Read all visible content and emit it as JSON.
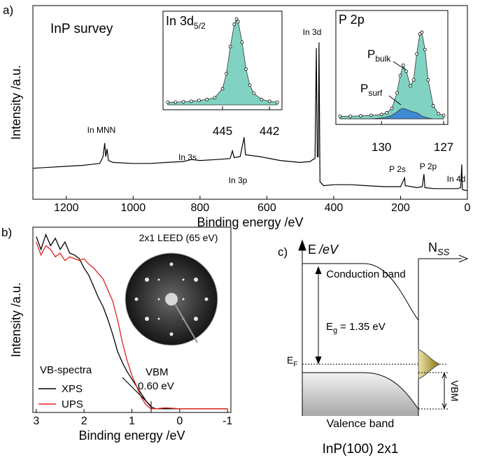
{
  "chart_data": [
    {
      "type": "line",
      "panel_label": "a)",
      "title": "InP survey",
      "x_label": "Binding energy /eV",
      "y_label": "Intensity /a.u.",
      "color": "#000000",
      "x": [
        1300,
        1250,
        1200,
        1150,
        1100,
        1090,
        1085,
        1082,
        1078,
        1074,
        1060,
        1000,
        950,
        900,
        850,
        825,
        800,
        750,
        710,
        703,
        698,
        680,
        668,
        664,
        620,
        560,
        500,
        470,
        462,
        456,
        452,
        449,
        446,
        444,
        441,
        430,
        400,
        350,
        300,
        250,
        200,
        188,
        186,
        150,
        135,
        130,
        127,
        100,
        60,
        30,
        20,
        17,
        15,
        5,
        0
      ],
      "values": [
        16,
        16.5,
        17,
        17.5,
        18.5,
        22,
        29,
        22,
        26,
        20,
        19,
        18.5,
        18.5,
        19,
        19.5,
        20.5,
        20,
        20.5,
        21,
        25,
        21.5,
        22,
        32,
        23,
        22,
        20,
        19,
        19.5,
        20.5,
        21,
        78,
        22,
        22,
        81,
        9,
        7,
        7.5,
        7.5,
        7,
        6.5,
        6.5,
        11,
        7,
        6,
        6.5,
        13,
        6,
        5.5,
        5.5,
        5.5,
        6,
        18,
        5,
        4.5,
        4.5
      ],
      "xlim": [
        1300,
        0
      ],
      "ylim": [
        0,
        100
      ],
      "xticks": [
        1200,
        1000,
        800,
        600,
        400,
        200,
        0
      ],
      "annotations": [
        "In MNN",
        "In 3s",
        "In 3p",
        "In 3d",
        "P 2s",
        "P 2p",
        "In 4d"
      ]
    },
    {
      "type": "area",
      "title_main": "In 3d",
      "title_sub": "5/2",
      "x": [
        448.5,
        448,
        447.5,
        447,
        446.5,
        446,
        445.5,
        445,
        444.75,
        444.5,
        444.25,
        444.1,
        444,
        443.75,
        443.5,
        443.25,
        443,
        442.5,
        442,
        441.5
      ],
      "series": [
        {
          "color": "#80d3c2",
          "values": [
            3,
            3,
            3.5,
            4,
            5,
            6,
            8,
            18,
            35,
            65,
            90,
            96,
            93,
            70,
            40,
            22,
            13,
            6,
            4,
            3
          ]
        }
      ],
      "xlim": [
        448.8,
        441.2
      ],
      "ylim": [
        0,
        100
      ],
      "xticks": [
        445,
        442
      ]
    },
    {
      "type": "area",
      "title": "P 2p",
      "annotations": [
        {
          "text": "P",
          "sub": "bulk"
        },
        {
          "text": "P",
          "sub": "surf"
        }
      ],
      "x": [
        132,
        131.5,
        131,
        130.5,
        130,
        129.75,
        129.5,
        129.25,
        129.1,
        128.95,
        128.8,
        128.6,
        128.45,
        128.3,
        128.15,
        128.05,
        127.9,
        127.75,
        127.5,
        127.25,
        127
      ],
      "series": [
        {
          "color": "#80d3c2",
          "values": [
            3,
            3,
            3.5,
            4,
            5,
            7,
            12,
            30,
            50,
            62,
            55,
            38,
            45,
            75,
            98,
            100,
            80,
            45,
            15,
            6,
            4
          ]
        },
        {
          "color": "#3b86d6",
          "values": [
            0,
            0,
            0,
            0,
            1,
            2,
            4,
            8,
            11,
            12,
            11,
            9,
            8,
            7,
            5,
            3,
            2,
            1,
            0,
            0,
            0
          ]
        }
      ],
      "xlim": [
        132.2,
        126.8
      ],
      "ylim": [
        0,
        105
      ],
      "xticks": [
        130,
        127
      ]
    },
    {
      "type": "line",
      "panel_label": "b)",
      "x_label": "Binding energy /eV",
      "y_label": "Intensity /a.u.",
      "legend_title": "VB-spectra",
      "inset_title": "2x1 LEED (65 eV)",
      "annotations": [
        "VBM",
        "0.60 eV"
      ],
      "x": [
        3,
        2.9,
        2.8,
        2.7,
        2.6,
        2.5,
        2.4,
        2.3,
        2.2,
        2.1,
        2.0,
        1.9,
        1.8,
        1.7,
        1.6,
        1.5,
        1.4,
        1.3,
        1.2,
        1.1,
        1.0,
        0.9,
        0.8,
        0.7,
        0.6,
        0.5,
        0.3,
        0,
        -0.3,
        -0.6,
        -1
      ],
      "series": [
        {
          "name": "XPS",
          "color": "#000000",
          "values": [
            95,
            88,
            96,
            90,
            94,
            88,
            92,
            86,
            85,
            83,
            78,
            74,
            68,
            62,
            57,
            50,
            42,
            33,
            27,
            22,
            18,
            14,
            10,
            6,
            3,
            2,
            2,
            2,
            2,
            2,
            2
          ]
        },
        {
          "name": "UPS",
          "color": "#e0201b",
          "values": [
            92,
            85,
            90,
            88,
            84,
            86,
            82,
            84,
            83,
            82,
            83,
            80,
            78,
            75,
            72,
            66,
            60,
            50,
            38,
            28,
            20,
            14,
            8,
            4,
            2,
            2,
            2.5,
            2,
            2,
            2,
            2
          ]
        }
      ],
      "xlim": [
        3.07,
        -1.07
      ],
      "ylim": [
        0,
        100
      ],
      "xticks": [
        3,
        2,
        1,
        0,
        -1
      ]
    }
  ],
  "band_diagram": {
    "panel_label": "c)",
    "energy_axis": {
      "symbol": "E",
      "unit": "/eV"
    },
    "dos_axis": {
      "symbol": "N",
      "sub": "SS"
    },
    "conduction_band": "Conduction band",
    "band_gap": {
      "symbol": "E",
      "sub": "g",
      "text": "= 1.35 eV"
    },
    "fermi_level": {
      "symbol": "E",
      "sub": "F"
    },
    "vbm": "VBM",
    "valence_band": "Valence band",
    "caption": "InP(100) 2x1"
  }
}
